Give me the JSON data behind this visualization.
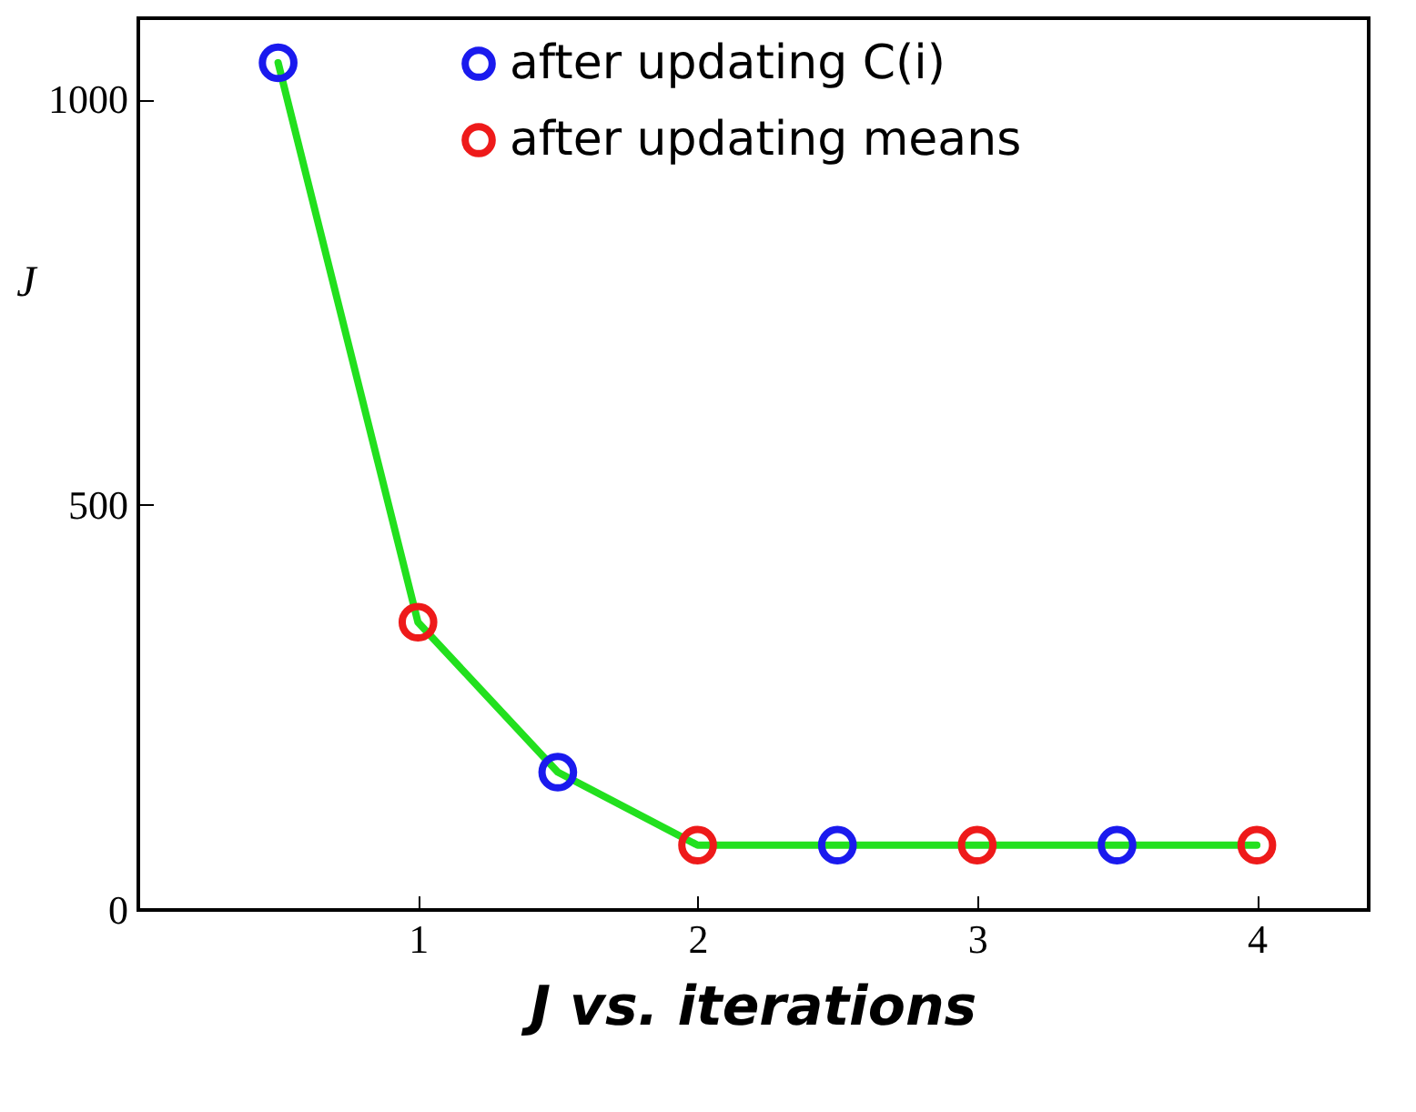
{
  "chart_data": {
    "type": "scatter",
    "title": "J vs. iterations",
    "ylabel": "J",
    "xlim": [
      0,
      4.4
    ],
    "ylim": [
      0,
      1100
    ],
    "xticks": [
      1,
      2,
      3,
      4
    ],
    "yticks": [
      0,
      500,
      1000
    ],
    "grid": false,
    "legend": "top right",
    "marker": "circle",
    "series": [
      {
        "type": "line",
        "marker": "none",
        "color": "#22e01e",
        "x": [
          0.5,
          1,
          1.5,
          2,
          2.5,
          3,
          3.5,
          4
        ],
        "values": [
          1045,
          355,
          170,
          80,
          80,
          80,
          80,
          80
        ]
      },
      {
        "name": "after updating C(i)",
        "color": "#1a1aee",
        "x": [
          0.5,
          1.5,
          2.5,
          3.5
        ],
        "values": [
          1045,
          170,
          80,
          80
        ]
      },
      {
        "name": "after updating means",
        "color": "#ee1a1a",
        "x": [
          1,
          2,
          3,
          4
        ],
        "values": [
          355,
          80,
          80,
          80
        ]
      }
    ]
  }
}
